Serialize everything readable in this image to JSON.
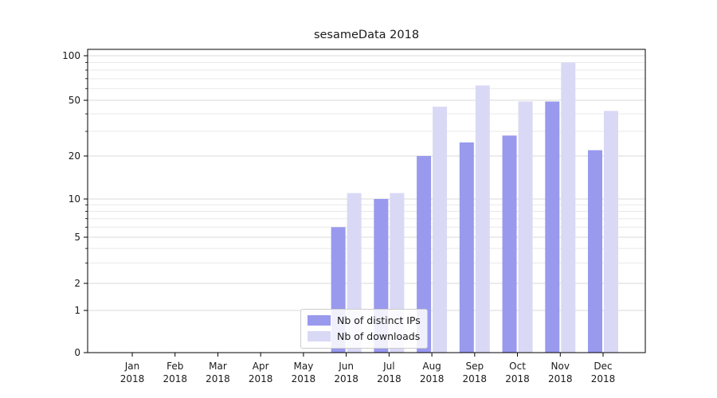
{
  "chart_data": {
    "type": "bar",
    "title": "sesameData 2018",
    "categories": [
      "Jan",
      "Feb",
      "Mar",
      "Apr",
      "May",
      "Jun",
      "Jul",
      "Aug",
      "Sep",
      "Oct",
      "Nov",
      "Dec"
    ],
    "year_label": "2018",
    "series": [
      {
        "name": "Nb of distinct IPs",
        "color": "#9999ee",
        "values": [
          0,
          0,
          0,
          0,
          0,
          6,
          10,
          20,
          25,
          28,
          49,
          22
        ]
      },
      {
        "name": "Nb of downloads",
        "color": "#d9d9f6",
        "values": [
          0,
          0,
          0,
          0,
          0,
          11,
          11,
          45,
          63,
          49,
          90,
          42
        ]
      }
    ],
    "yscale": "symlog",
    "ylim": [
      0,
      100
    ],
    "y_ticks": [
      0,
      1,
      2,
      5,
      10,
      20,
      50,
      100
    ],
    "y_minor_ticks": [
      3,
      4,
      6,
      7,
      8,
      9,
      30,
      40,
      60,
      70,
      80,
      90
    ],
    "grid": true,
    "legend_position": "lower center",
    "colors": {
      "grid_major": "#d9d9d9",
      "grid_minor": "#e9e9e9",
      "axis": "#000000",
      "text": "#1a1a1a"
    }
  }
}
